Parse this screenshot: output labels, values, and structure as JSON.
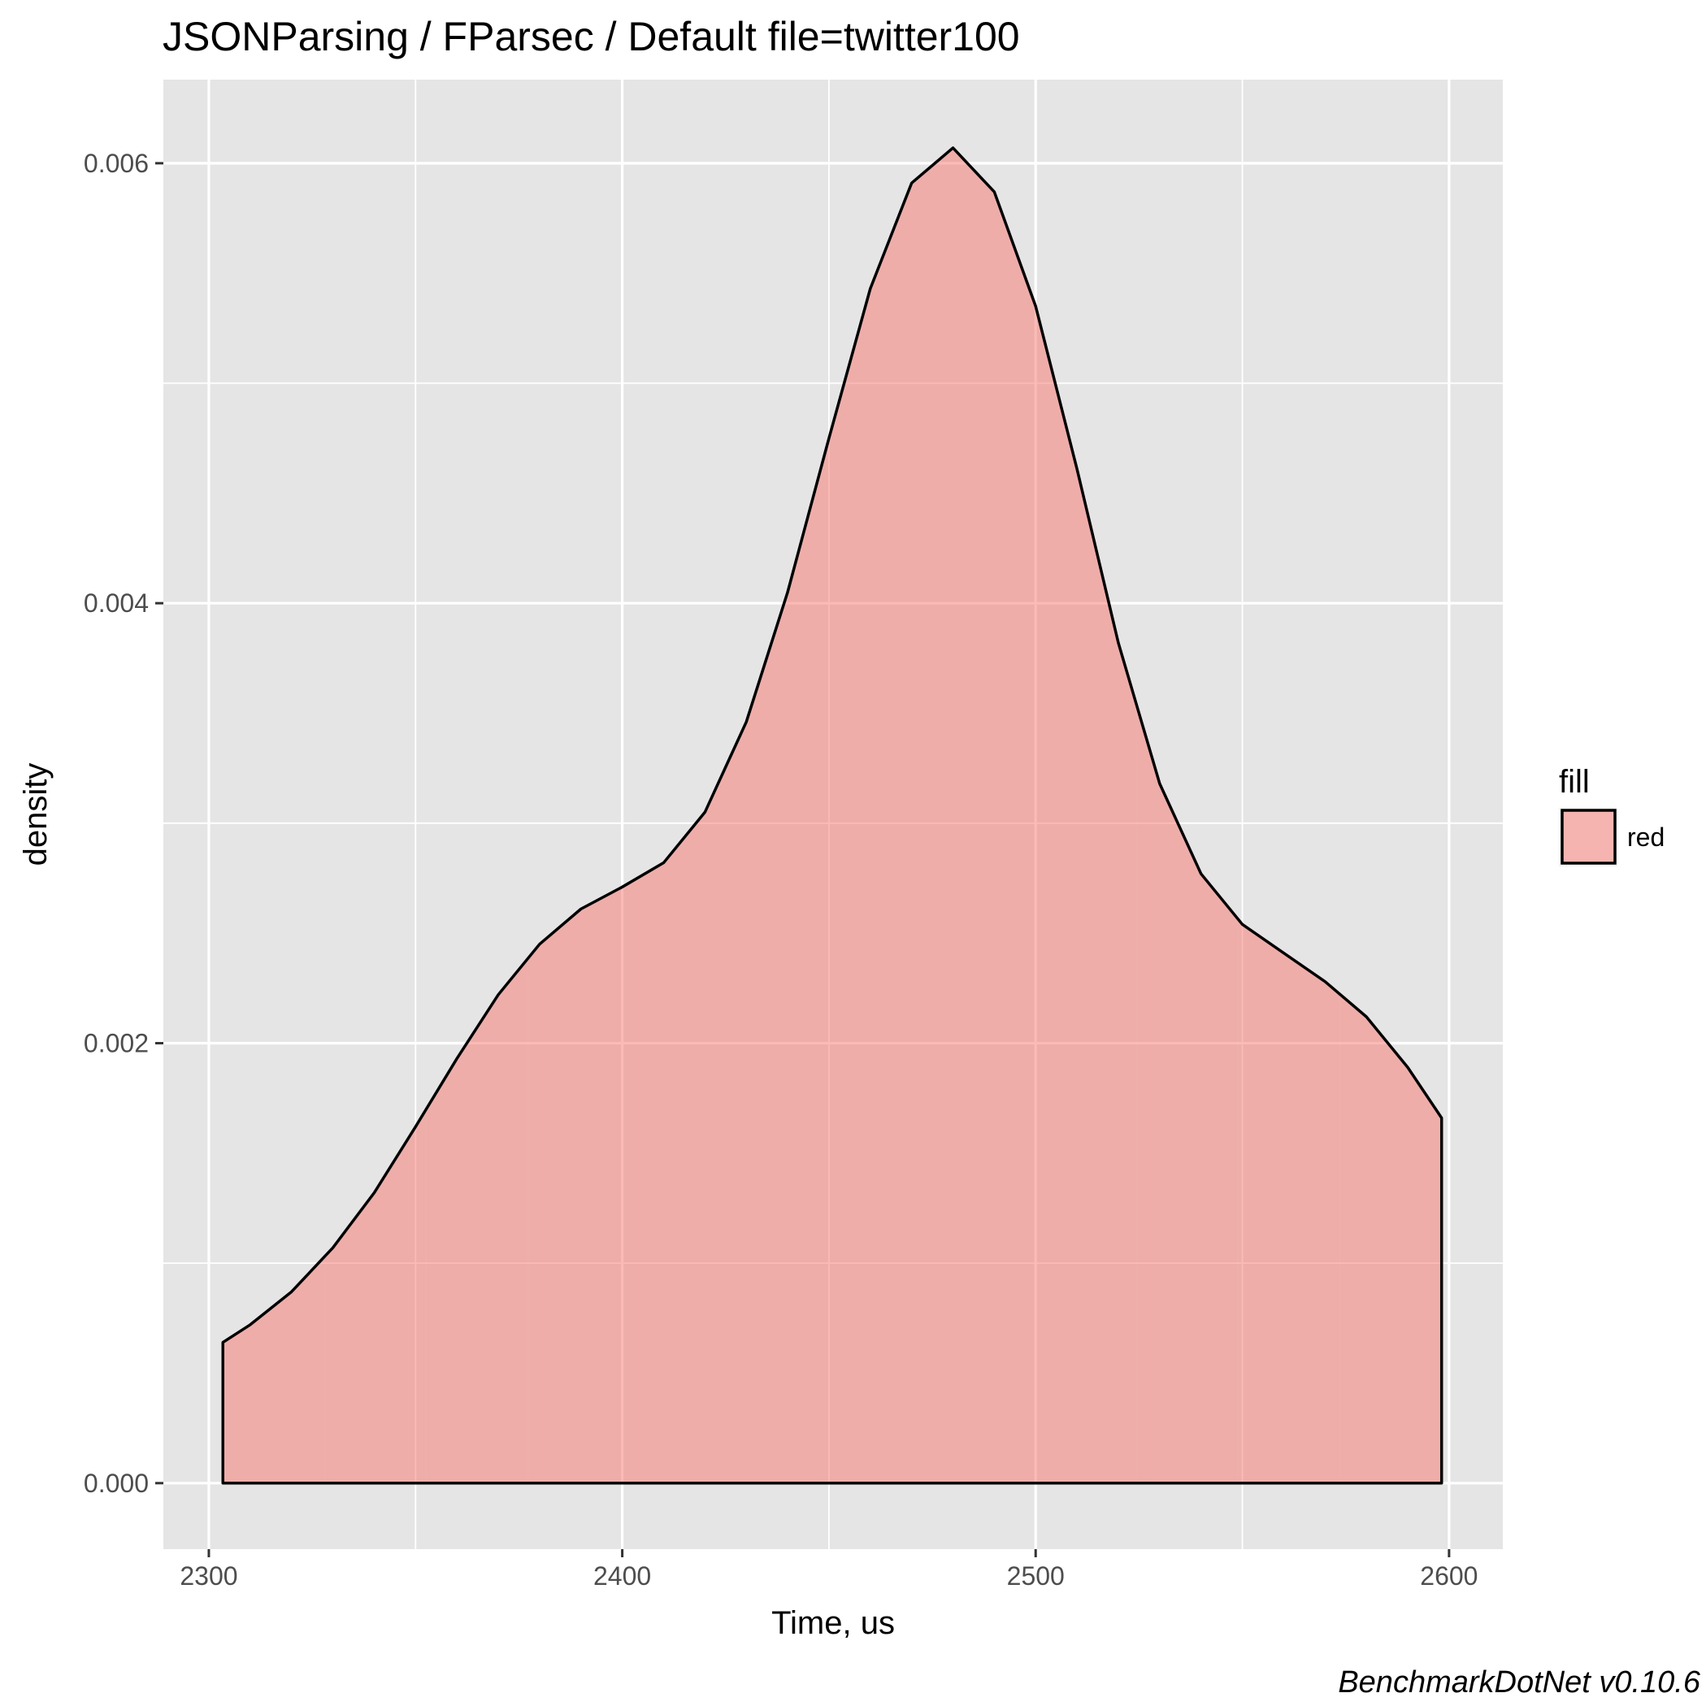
{
  "chart_data": {
    "type": "area",
    "subtype": "density",
    "title": "JSONParsing / FParsec / Default file=twitter100",
    "xlabel": "Time, us",
    "ylabel": "density",
    "xlim": [
      2289,
      2613
    ],
    "ylim": [
      -0.0003,
      0.00638
    ],
    "x_ticks": [
      2300,
      2400,
      2500,
      2600
    ],
    "x_tick_labels": [
      "2300",
      "2400",
      "2500",
      "2600"
    ],
    "y_ticks": [
      0,
      0.002,
      0.004,
      0.006
    ],
    "y_tick_labels": [
      "0.000",
      "0.002",
      "0.004",
      "0.006"
    ],
    "grid": true,
    "background": "#e5e5e5",
    "legend": {
      "title": "fill",
      "position": "right",
      "entries": [
        {
          "label": "red",
          "color": "#f8766d"
        }
      ]
    },
    "caption": "BenchmarkDotNet v0.10.6",
    "series": [
      {
        "name": "red",
        "fill": "#f8766d",
        "fill_opacity": 0.5,
        "stroke": "#000000",
        "points": [
          [
            2303.4,
            0.00064
          ],
          [
            2310,
            0.00072
          ],
          [
            2320,
            0.00087
          ],
          [
            2330,
            0.00107
          ],
          [
            2340,
            0.00132
          ],
          [
            2350,
            0.00162
          ],
          [
            2360,
            0.00193
          ],
          [
            2370,
            0.00222
          ],
          [
            2380,
            0.00245
          ],
          [
            2390,
            0.00261
          ],
          [
            2400,
            0.00271
          ],
          [
            2410,
            0.00282
          ],
          [
            2420,
            0.00305
          ],
          [
            2430,
            0.00346
          ],
          [
            2440,
            0.00405
          ],
          [
            2450,
            0.00475
          ],
          [
            2460,
            0.00543
          ],
          [
            2470,
            0.00591
          ],
          [
            2480,
            0.00607
          ],
          [
            2490,
            0.00587
          ],
          [
            2500,
            0.00535
          ],
          [
            2510,
            0.00461
          ],
          [
            2520,
            0.00382
          ],
          [
            2530,
            0.00318
          ],
          [
            2540,
            0.00277
          ],
          [
            2550,
            0.00254
          ],
          [
            2560,
            0.00241
          ],
          [
            2570,
            0.00228
          ],
          [
            2580,
            0.00212
          ],
          [
            2590,
            0.00189
          ],
          [
            2598.2,
            0.00166
          ]
        ]
      }
    ]
  }
}
